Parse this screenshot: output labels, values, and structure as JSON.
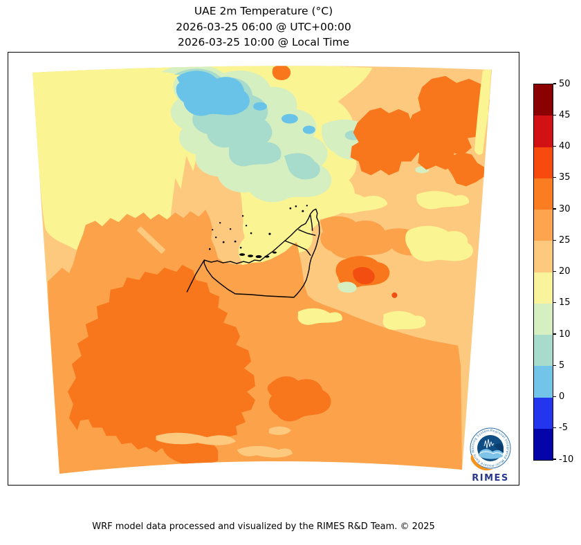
{
  "title": {
    "line1": "UAE 2m Temperature (°C)",
    "line2": "2026-03-25 06:00 @ UTC+00:00",
    "line3": "2026-03-25 10:00 @ Local Time"
  },
  "footer": {
    "credit": "WRF model data processed and visualized by the RIMES R&D Team. © 2025"
  },
  "logo": {
    "name": "RIMES",
    "ring_text": "Regional Integrated Multi-Hazard Early Warning System"
  },
  "colorbar": {
    "unit": "°C",
    "tick_labels": [
      "50",
      "45",
      "40",
      "35",
      "30",
      "25",
      "20",
      "15",
      "10",
      "5",
      "0",
      "-5",
      "-10"
    ],
    "band_colors_top_to_bottom": [
      "#8B0000",
      "#D21114",
      "#F64A0E",
      "#FB7D22",
      "#FCA44E",
      "#FDC97E",
      "#F9F49B",
      "#D6EFC1",
      "#A7DBCB",
      "#72C5E9",
      "#2336EE",
      "#0404A8"
    ]
  },
  "map": {
    "outline_region": "United Arab Emirates",
    "background": "#FFFFFF",
    "border_color": "#000000",
    "fill_colors": {
      "t0_5": "#69C3E9",
      "t5_10": "#A7DBCB",
      "t10_15": "#D6EFC1",
      "t15_20": "#FAF492",
      "t20_25": "#FDC97E",
      "t25_30": "#FCA24A",
      "t30_35": "#F9771C",
      "t35_40": "#F34E11"
    }
  },
  "chart_data": {
    "type": "filled_contour_map",
    "variable": "2m Temperature",
    "unit": "°C",
    "region": "UAE and surrounding Gulf / Iran / Saudi Arabia WRF domain",
    "forecast_time_utc": "2026-03-25 06:00",
    "forecast_time_local": "2026-03-25 10:00",
    "levels": [
      -10,
      -5,
      0,
      5,
      10,
      15,
      20,
      25,
      30,
      35,
      40,
      45,
      50
    ],
    "level_colors_low_to_high": [
      "#0404A8",
      "#2336EE",
      "#72C5E9",
      "#A7DBCB",
      "#D6EFC1",
      "#F9F49B",
      "#FDC97E",
      "#FCA44E",
      "#FB7D22",
      "#F64A0E",
      "#D21114",
      "#8B0000"
    ],
    "value_summary": "15-20°C over the northern (Iran) sector with cold pockets of 0-15°C in the mountains; 20-25°C across the Gulf and UAE coast; 25-30°C over most inland UAE/Saudi desert; 30-35°C hot cores in the southwest desert and southeast; small 35-40°C spots east of the UAE"
  }
}
